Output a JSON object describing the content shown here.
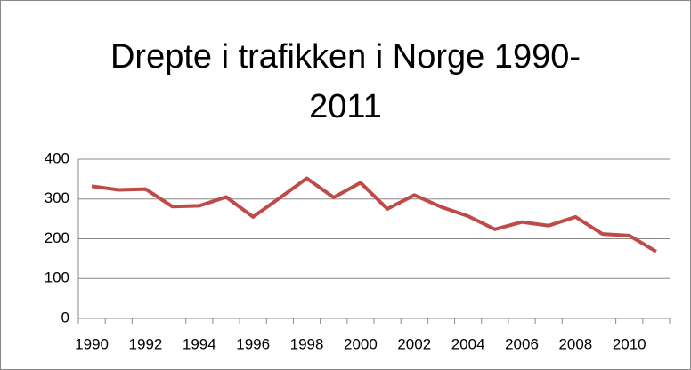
{
  "chart_data": {
    "type": "line",
    "title": "Drepte i trafikken i Norge 1990-2011",
    "categories": [
      "1990",
      null,
      "1992",
      null,
      "1994",
      null,
      "1996",
      null,
      "1998",
      null,
      "2000",
      null,
      "2002",
      null,
      "2004",
      null,
      "2006",
      null,
      "2008",
      null,
      "2010",
      null
    ],
    "series": [
      {
        "name": "Drepte",
        "color": "#be4b48",
        "values": [
          332,
          323,
          325,
          281,
          283,
          305,
          255,
          303,
          352,
          304,
          341,
          275,
          310,
          280,
          257,
          224,
          242,
          233,
          255,
          212,
          208,
          168
        ]
      }
    ],
    "ylim": [
      0,
      400
    ],
    "yticks": [
      0,
      100,
      200,
      300,
      400
    ],
    "grid": true
  }
}
